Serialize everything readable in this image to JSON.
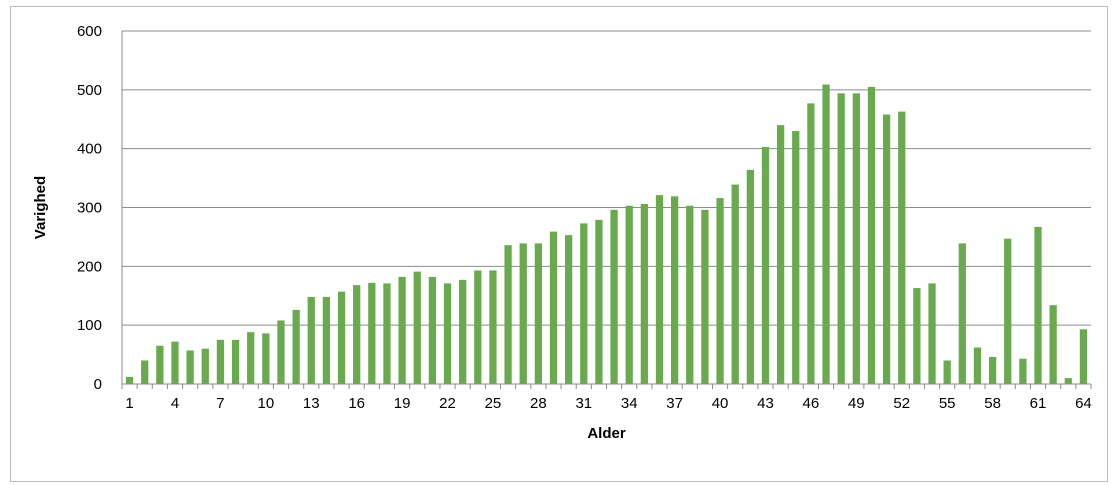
{
  "chart_data": {
    "type": "bar",
    "title": "",
    "xlabel": "Alder",
    "ylabel": "Varighed",
    "ylim": [
      0,
      600
    ],
    "yticks": [
      0,
      100,
      200,
      300,
      400,
      500,
      600
    ],
    "grid": true,
    "legend": "none",
    "bar_color": "#6aaa4f",
    "categories": [
      1,
      2,
      3,
      4,
      5,
      6,
      7,
      8,
      9,
      10,
      11,
      12,
      13,
      14,
      15,
      16,
      17,
      18,
      19,
      20,
      21,
      22,
      23,
      24,
      25,
      26,
      27,
      28,
      29,
      30,
      31,
      32,
      33,
      34,
      35,
      36,
      37,
      38,
      39,
      40,
      41,
      42,
      43,
      44,
      45,
      46,
      47,
      48,
      49,
      50,
      51,
      52,
      53,
      54,
      55,
      56,
      57,
      58,
      59,
      60,
      61,
      62,
      63,
      64
    ],
    "tick_labels": [
      "1",
      "4",
      "7",
      "10",
      "13",
      "16",
      "19",
      "22",
      "25",
      "28",
      "31",
      "34",
      "37",
      "40",
      "43",
      "46",
      "49",
      "52",
      "55",
      "58",
      "61",
      "64"
    ],
    "tick_label_indices": [
      0,
      3,
      6,
      9,
      12,
      15,
      18,
      21,
      24,
      27,
      30,
      33,
      36,
      39,
      42,
      45,
      48,
      51,
      54,
      57,
      60,
      63
    ],
    "values": [
      12,
      40,
      65,
      72,
      57,
      60,
      75,
      75,
      88,
      86,
      108,
      126,
      148,
      148,
      157,
      168,
      172,
      171,
      182,
      191,
      182,
      171,
      177,
      193,
      193,
      236,
      239,
      239,
      259,
      253,
      273,
      279,
      296,
      303,
      306,
      321,
      319,
      303,
      296,
      316,
      339,
      364,
      403,
      440,
      430,
      477,
      509,
      494,
      494,
      505,
      458,
      463,
      163,
      171,
      40,
      239,
      62,
      46,
      247,
      43,
      267,
      134,
      10,
      93
    ]
  }
}
